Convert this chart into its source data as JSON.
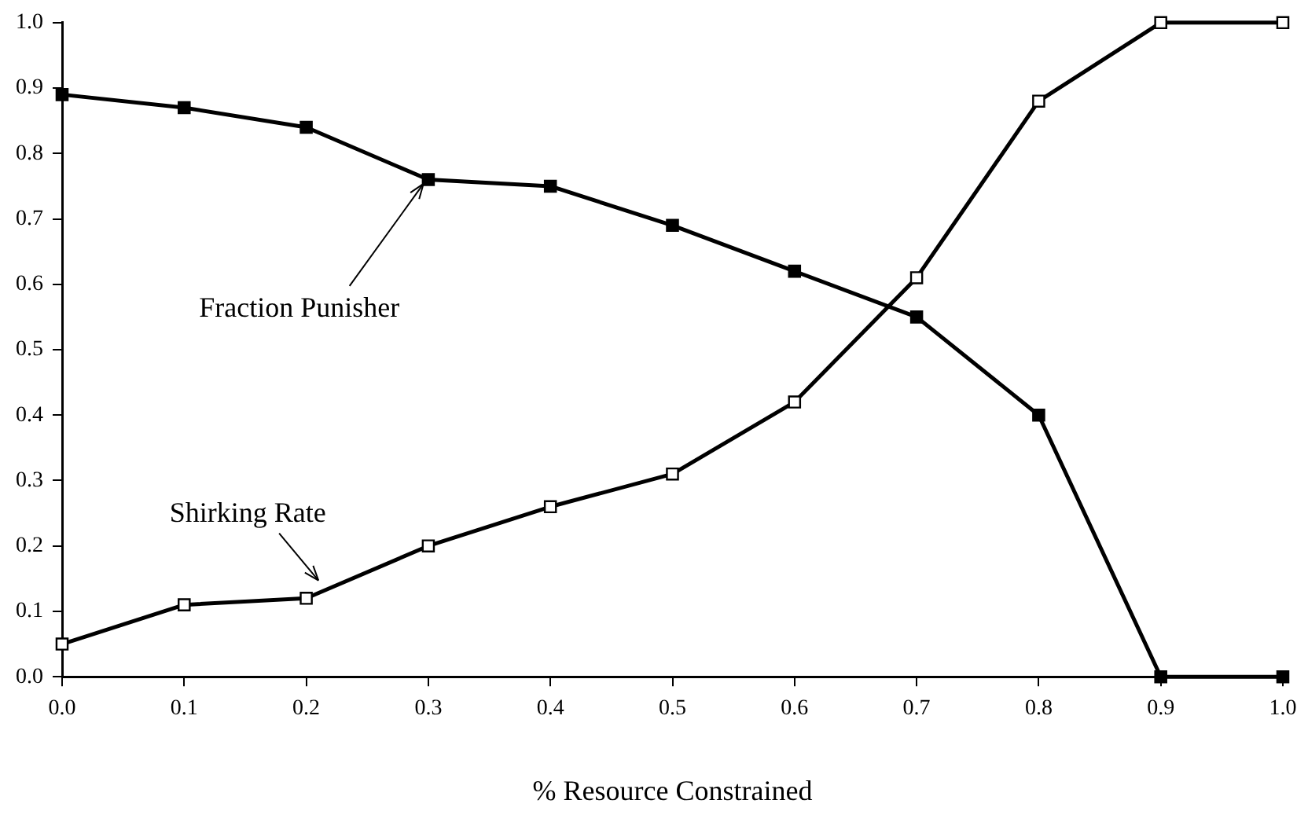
{
  "chart_data": {
    "type": "line",
    "xlabel": "% Resource Constrained",
    "x": [
      0,
      0.1,
      0.2,
      0.3,
      0.4,
      0.5,
      0.6,
      0.7,
      0.8,
      0.9,
      1.0
    ],
    "series": [
      {
        "name": "Fraction Punisher",
        "color": "#000000",
        "values": [
          0.89,
          0.87,
          0.84,
          0.76,
          0.75,
          0.69,
          0.62,
          0.55,
          0.4,
          0,
          0
        ]
      },
      {
        "name": "Shirking Rate",
        "color": "#000000",
        "values": [
          0.05,
          0.11,
          0.12,
          0.2,
          0.26,
          0.31,
          0.42,
          0.61,
          0.88,
          1,
          1
        ]
      }
    ],
    "xlim": [
      0,
      1
    ],
    "ylim": [
      0,
      1
    ],
    "xticks": [
      {
        "value": 0,
        "label": "0.0"
      },
      {
        "value": 0.1,
        "label": "0.1"
      },
      {
        "value": 0.2,
        "label": "0.2"
      },
      {
        "value": 0.3,
        "label": "0.3"
      },
      {
        "value": 0.4,
        "label": "0.4"
      },
      {
        "value": 0.5,
        "label": "0.5"
      },
      {
        "value": 0.6,
        "label": "0.6"
      },
      {
        "value": 0.7,
        "label": "0.7"
      },
      {
        "value": 0.8,
        "label": "0.8"
      },
      {
        "value": 0.9,
        "label": "0.9"
      },
      {
        "value": 1,
        "label": "1.0"
      }
    ],
    "yticks": [
      {
        "value": 0,
        "label": "0.0"
      },
      {
        "value": 0.1,
        "label": "0.1"
      },
      {
        "value": 0.2,
        "label": "0.2"
      },
      {
        "value": 0.3,
        "label": "0.3"
      },
      {
        "value": 0.4,
        "label": "0.4"
      },
      {
        "value": 0.5,
        "label": "0.5"
      },
      {
        "value": 0.6,
        "label": "0.6"
      },
      {
        "value": 0.7,
        "label": "0.7"
      },
      {
        "value": 0.8,
        "label": "0.8"
      },
      {
        "value": 0.9,
        "label": "0.9"
      },
      {
        "value": 1,
        "label": "1.0"
      }
    ],
    "grid": false,
    "legend": false,
    "marker": "square",
    "line_style": "solid"
  }
}
